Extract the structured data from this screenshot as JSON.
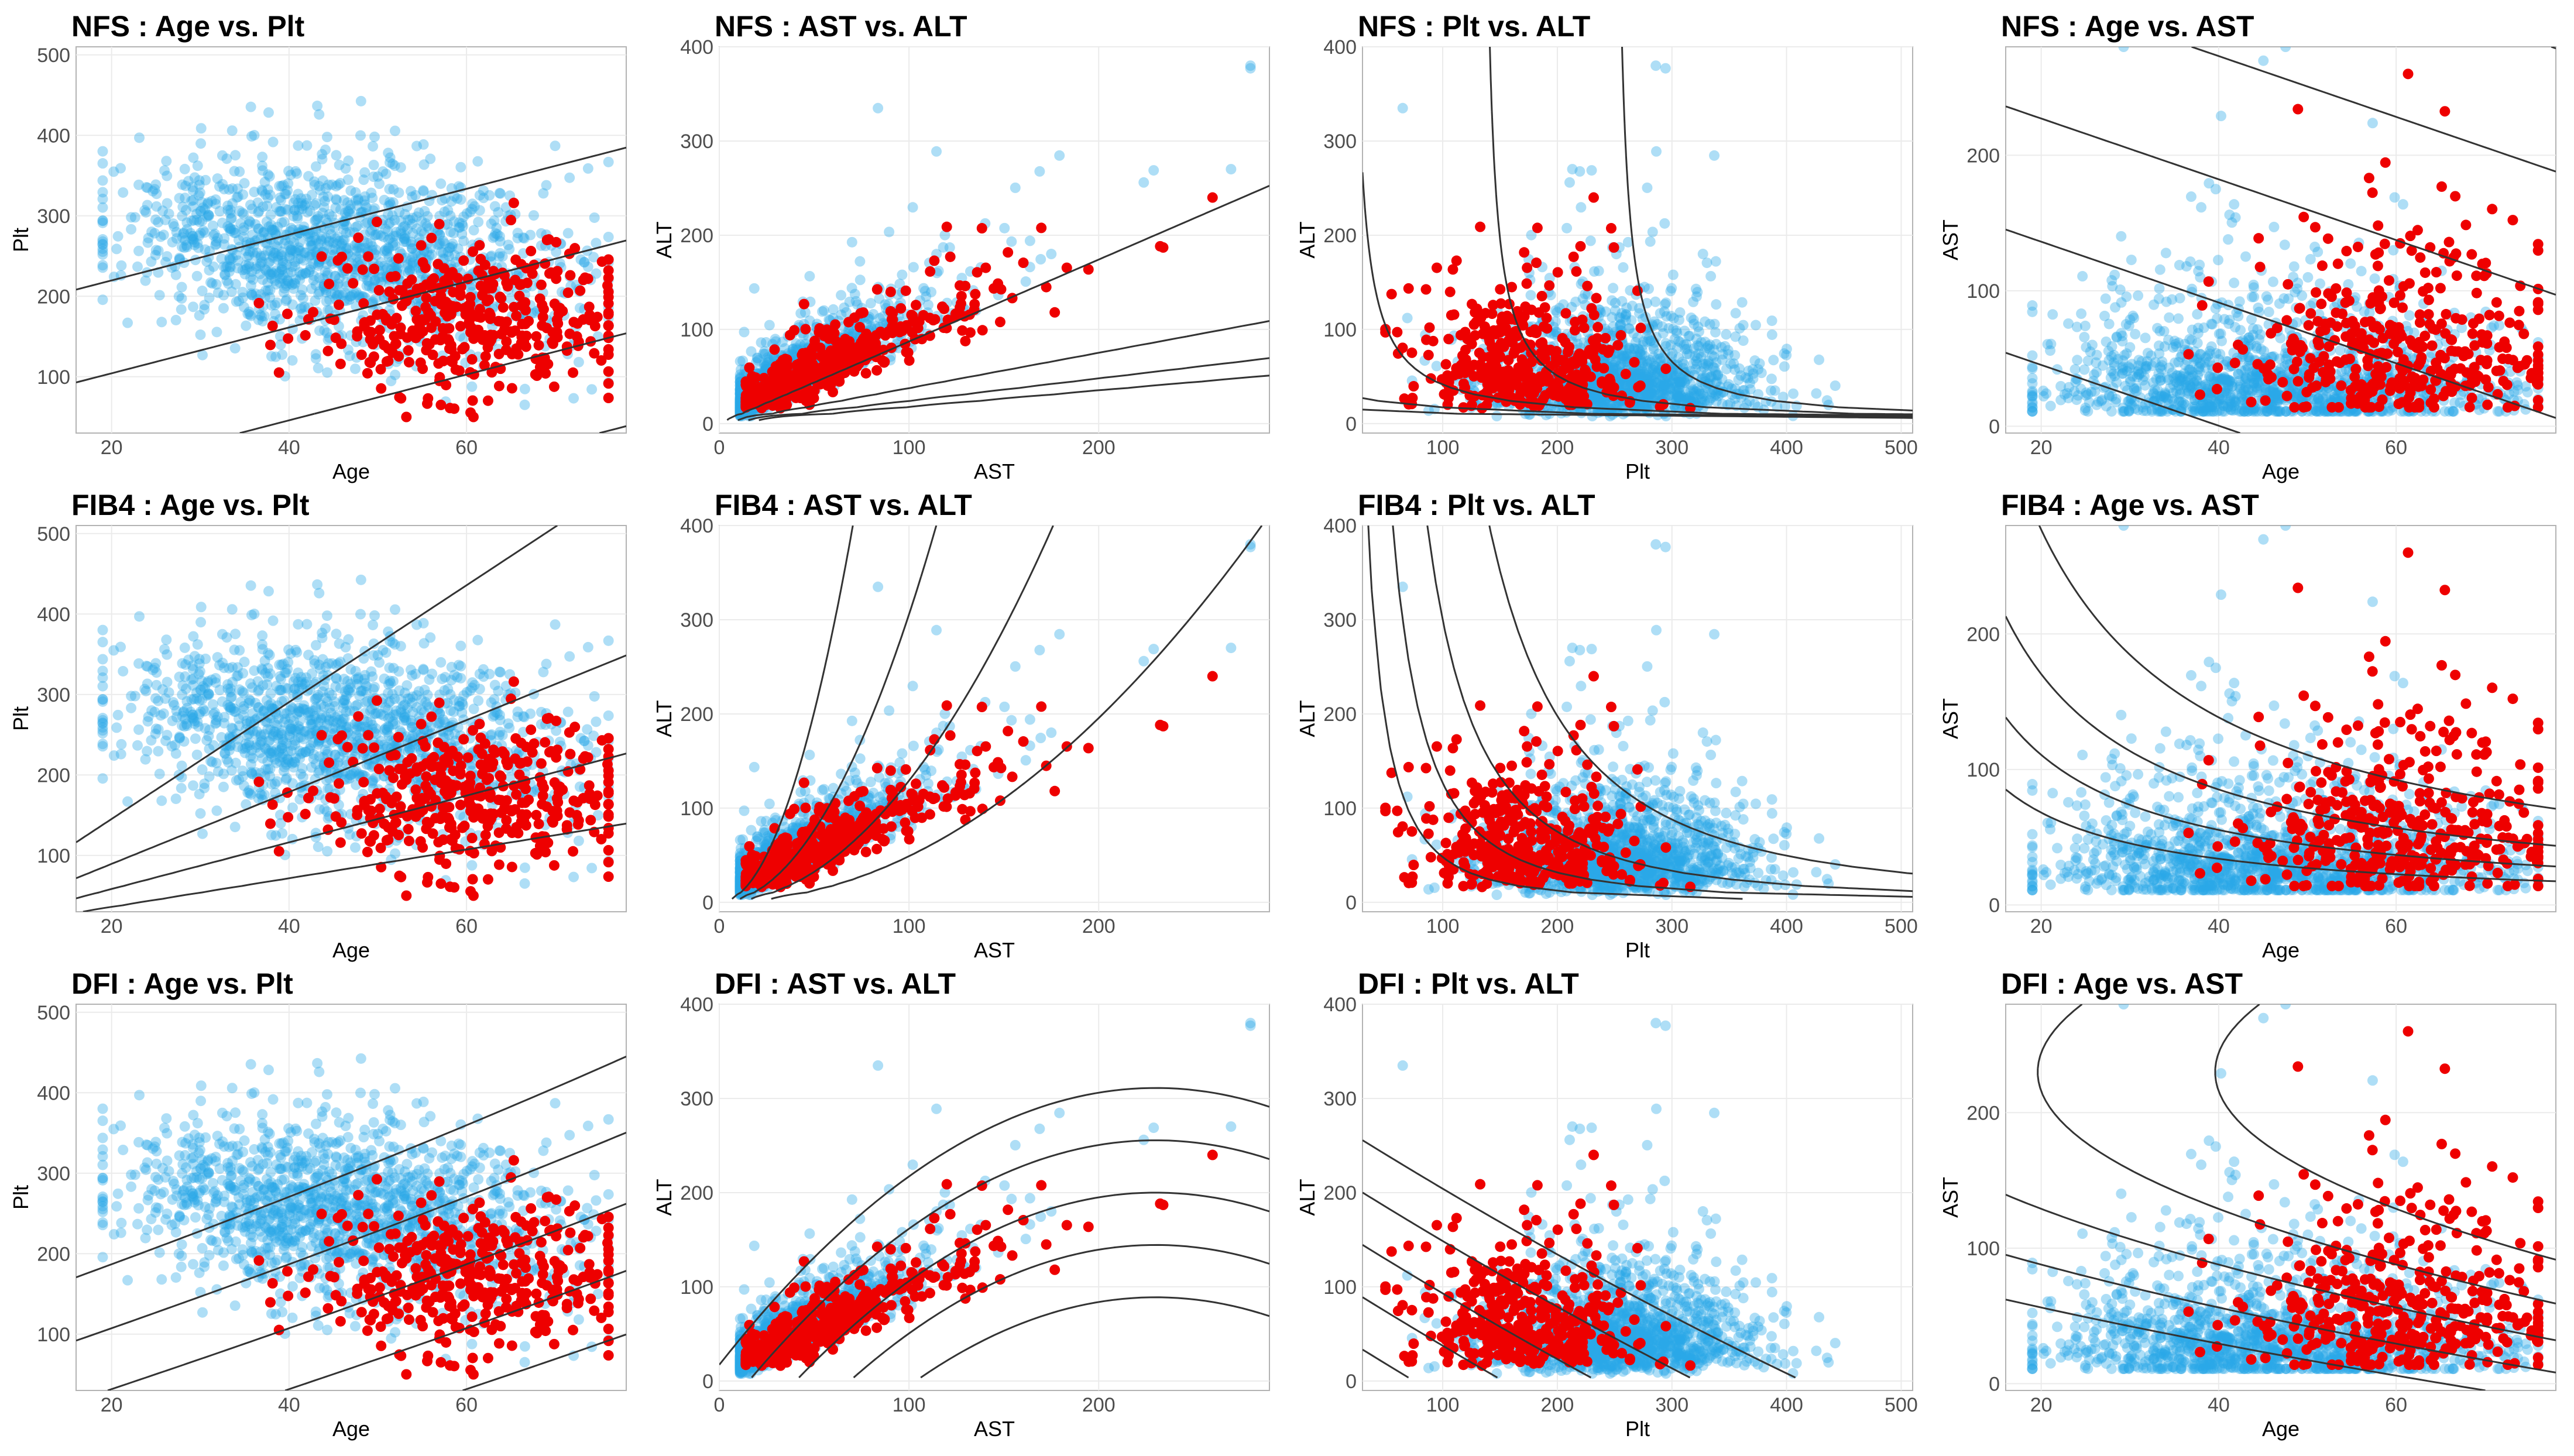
{
  "colors": {
    "non_case": "#29a8e8",
    "case": "#ee0000",
    "contour": "#333333"
  },
  "chart_data": [
    {
      "type": "scatter",
      "score": "NFS",
      "title": "NFS : Age vs. Plt",
      "xlabel": "Age",
      "ylabel": "Plt",
      "x_var": "age",
      "y_var": "plt",
      "xlim": [
        16,
        78
      ],
      "ylim": [
        30,
        510
      ],
      "xticks": [
        20,
        40,
        60
      ],
      "yticks": [
        100,
        200,
        300,
        400,
        500
      ],
      "contours": [
        -3,
        -1.5,
        0,
        1.5,
        3
      ]
    },
    {
      "type": "scatter",
      "score": "NFS",
      "title": "NFS : AST vs. ALT",
      "xlabel": "AST",
      "ylabel": "ALT",
      "x_var": "ast",
      "y_var": "alt",
      "xlim": [
        0,
        290
      ],
      "ylim": [
        -10,
        400
      ],
      "xticks": [
        0,
        100,
        200
      ],
      "yticks": [
        0,
        100,
        200,
        300,
        400
      ],
      "contours": [
        -3,
        -1.5,
        0,
        1.5,
        3
      ]
    },
    {
      "type": "scatter",
      "score": "NFS",
      "title": "NFS : Plt vs. ALT",
      "xlabel": "Plt",
      "ylabel": "ALT",
      "x_var": "plt",
      "y_var": "alt",
      "xlim": [
        30,
        510
      ],
      "ylim": [
        -10,
        400
      ],
      "xticks": [
        100,
        200,
        300,
        400,
        500
      ],
      "yticks": [
        0,
        100,
        200,
        300,
        400
      ],
      "contours": [
        -3,
        -1.5,
        0,
        1.5,
        3
      ]
    },
    {
      "type": "scatter",
      "score": "NFS",
      "title": "NFS : Age vs. AST",
      "xlabel": "Age",
      "ylabel": "AST",
      "x_var": "age",
      "y_var": "ast",
      "xlim": [
        16,
        78
      ],
      "ylim": [
        -5,
        280
      ],
      "xticks": [
        20,
        40,
        60
      ],
      "yticks": [
        0,
        100,
        200
      ],
      "contours": [
        -3,
        -1.5,
        0,
        1.5,
        3
      ]
    },
    {
      "type": "scatter",
      "score": "FIB4",
      "title": "FIB4 : Age vs. Plt",
      "xlabel": "Age",
      "ylabel": "Plt",
      "x_var": "age",
      "y_var": "plt",
      "xlim": [
        16,
        78
      ],
      "ylim": [
        30,
        510
      ],
      "xticks": [
        20,
        40,
        60
      ],
      "yticks": [
        100,
        200,
        300,
        400,
        500
      ],
      "contours": [
        0.8,
        1.3,
        2.0,
        3.25
      ]
    },
    {
      "type": "scatter",
      "score": "FIB4",
      "title": "FIB4 : AST vs. ALT",
      "xlabel": "AST",
      "ylabel": "ALT",
      "x_var": "ast",
      "y_var": "alt",
      "xlim": [
        0,
        290
      ],
      "ylim": [
        -10,
        400
      ],
      "xticks": [
        0,
        100,
        200
      ],
      "yticks": [
        0,
        100,
        200,
        300,
        400
      ],
      "contours": [
        0.8,
        1.3,
        2.0,
        3.25
      ]
    },
    {
      "type": "scatter",
      "score": "FIB4",
      "title": "FIB4 : Plt vs. ALT",
      "xlabel": "Plt",
      "ylabel": "ALT",
      "x_var": "plt",
      "y_var": "alt",
      "xlim": [
        30,
        510
      ],
      "ylim": [
        -10,
        400
      ],
      "xticks": [
        100,
        200,
        300,
        400,
        500
      ],
      "yticks": [
        0,
        100,
        200,
        300,
        400
      ],
      "contours": [
        0.8,
        1.3,
        2.0,
        3.25
      ]
    },
    {
      "type": "scatter",
      "score": "FIB4",
      "title": "FIB4 : Age vs. AST",
      "xlabel": "Age",
      "ylabel": "AST",
      "x_var": "age",
      "y_var": "ast",
      "xlim": [
        16,
        78
      ],
      "ylim": [
        -5,
        280
      ],
      "xticks": [
        20,
        40,
        60
      ],
      "yticks": [
        0,
        100,
        200
      ],
      "contours": [
        0.8,
        1.3,
        2.0,
        3.25
      ]
    },
    {
      "type": "scatter",
      "score": "DFI",
      "title": "DFI : Age vs. Plt",
      "xlabel": "Age",
      "ylabel": "Plt",
      "x_var": "age",
      "y_var": "plt",
      "xlim": [
        16,
        78
      ],
      "ylim": [
        30,
        510
      ],
      "xticks": [
        20,
        40,
        60
      ],
      "yticks": [
        100,
        200,
        300,
        400,
        500
      ],
      "contours": [
        -2,
        -1,
        0,
        1,
        2
      ]
    },
    {
      "type": "scatter",
      "score": "DFI",
      "title": "DFI : AST vs. ALT",
      "xlabel": "AST",
      "ylabel": "ALT",
      "x_var": "ast",
      "y_var": "alt",
      "xlim": [
        0,
        290
      ],
      "ylim": [
        -10,
        400
      ],
      "xticks": [
        0,
        100,
        200
      ],
      "yticks": [
        0,
        100,
        200,
        300,
        400
      ],
      "contours": [
        -2,
        -1,
        0,
        1,
        2
      ]
    },
    {
      "type": "scatter",
      "score": "DFI",
      "title": "DFI : Plt vs. ALT",
      "xlabel": "Plt",
      "ylabel": "ALT",
      "x_var": "plt",
      "y_var": "alt",
      "xlim": [
        30,
        510
      ],
      "ylim": [
        -10,
        400
      ],
      "xticks": [
        100,
        200,
        300,
        400,
        500
      ],
      "yticks": [
        0,
        100,
        200,
        300,
        400
      ],
      "contours": [
        -2,
        -1,
        0,
        1,
        2
      ]
    },
    {
      "type": "scatter",
      "score": "DFI",
      "title": "DFI : Age vs. AST",
      "xlabel": "Age",
      "ylabel": "AST",
      "x_var": "age",
      "y_var": "ast",
      "xlim": [
        16,
        78
      ],
      "ylim": [
        -5,
        280
      ],
      "xticks": [
        20,
        40,
        60
      ],
      "yticks": [
        0,
        100,
        200
      ],
      "contours": [
        -2,
        -1,
        0,
        1,
        2
      ]
    }
  ]
}
